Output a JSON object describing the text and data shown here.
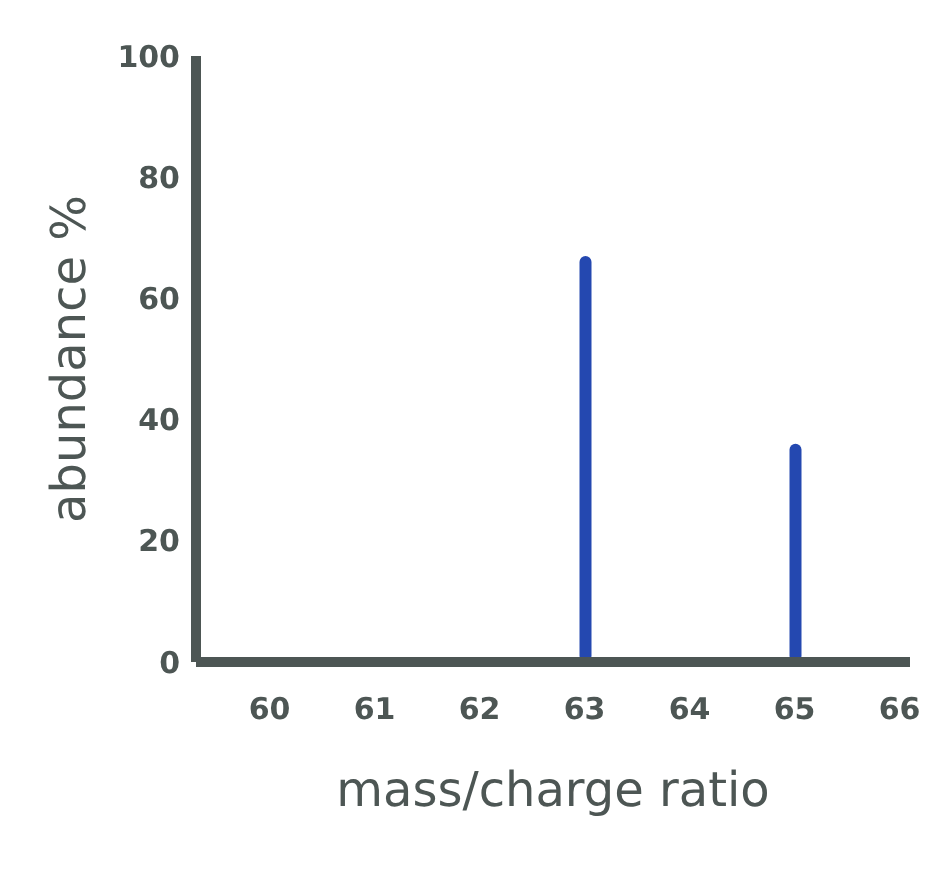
{
  "chart_data": {
    "type": "bar",
    "xlabel": "mass/charge ratio",
    "ylabel": "abundance %",
    "x": [
      63,
      65
    ],
    "values": [
      67,
      36
    ],
    "color": "#2448b0",
    "xlim": [
      59.3,
      66.1
    ],
    "xticks": [
      60,
      61,
      62,
      63,
      64,
      65,
      66
    ],
    "ylim": [
      0,
      100
    ],
    "yticks": [
      0,
      20,
      40,
      60,
      80,
      100
    ],
    "grid": false
  }
}
